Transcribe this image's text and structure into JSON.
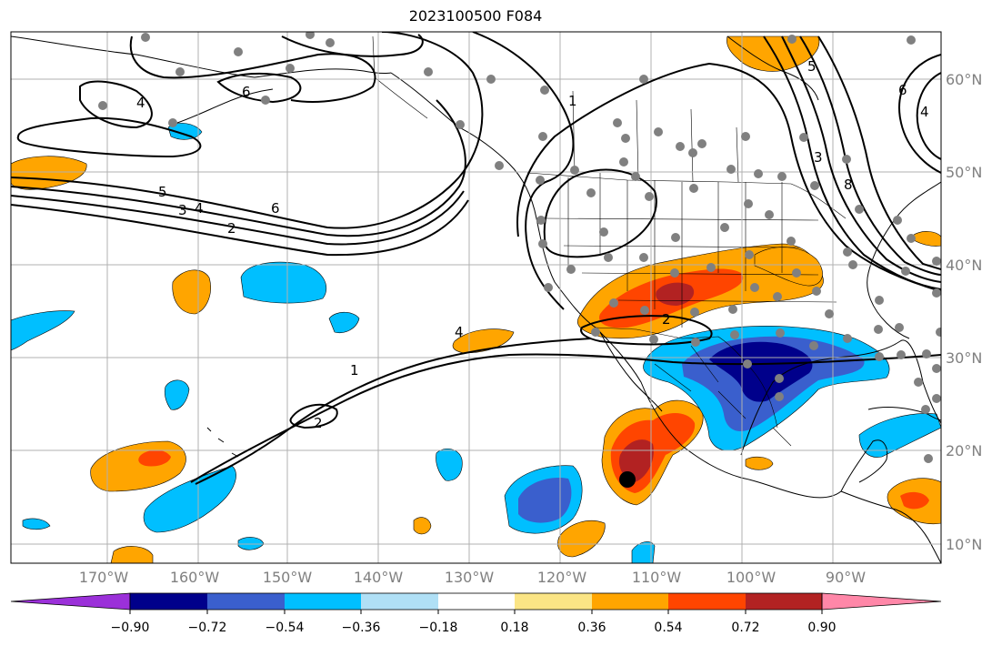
{
  "title": "2023100500 F084",
  "map": {
    "longitude_labels": [
      "170°W",
      "160°W",
      "150°W",
      "140°W",
      "130°W",
      "120°W",
      "110°W",
      "100°W",
      "90°W"
    ],
    "latitude_labels": [
      "60°N",
      "50°N",
      "40°N",
      "30°N",
      "20°N",
      "10°N"
    ],
    "contour_labels": [
      "4",
      "6",
      "5",
      "3",
      "4",
      "2",
      "6",
      "1",
      "2",
      "1",
      "2",
      "4",
      "3",
      "6",
      "5",
      "4",
      "8"
    ],
    "marker": "black-dot"
  },
  "colorbar": {
    "ticks": [
      "−0.90",
      "−0.72",
      "−0.54",
      "−0.36",
      "−0.18",
      "0.18",
      "0.36",
      "0.54",
      "0.72",
      "0.90"
    ],
    "colors": [
      "#9b30d9",
      "#00008b",
      "#3a5fcd",
      "#00bfff",
      "#b0e0f6",
      "#ffffff",
      "#fbe585",
      "#ffa500",
      "#ff4500",
      "#b22222",
      "#ff87a8"
    ]
  }
}
